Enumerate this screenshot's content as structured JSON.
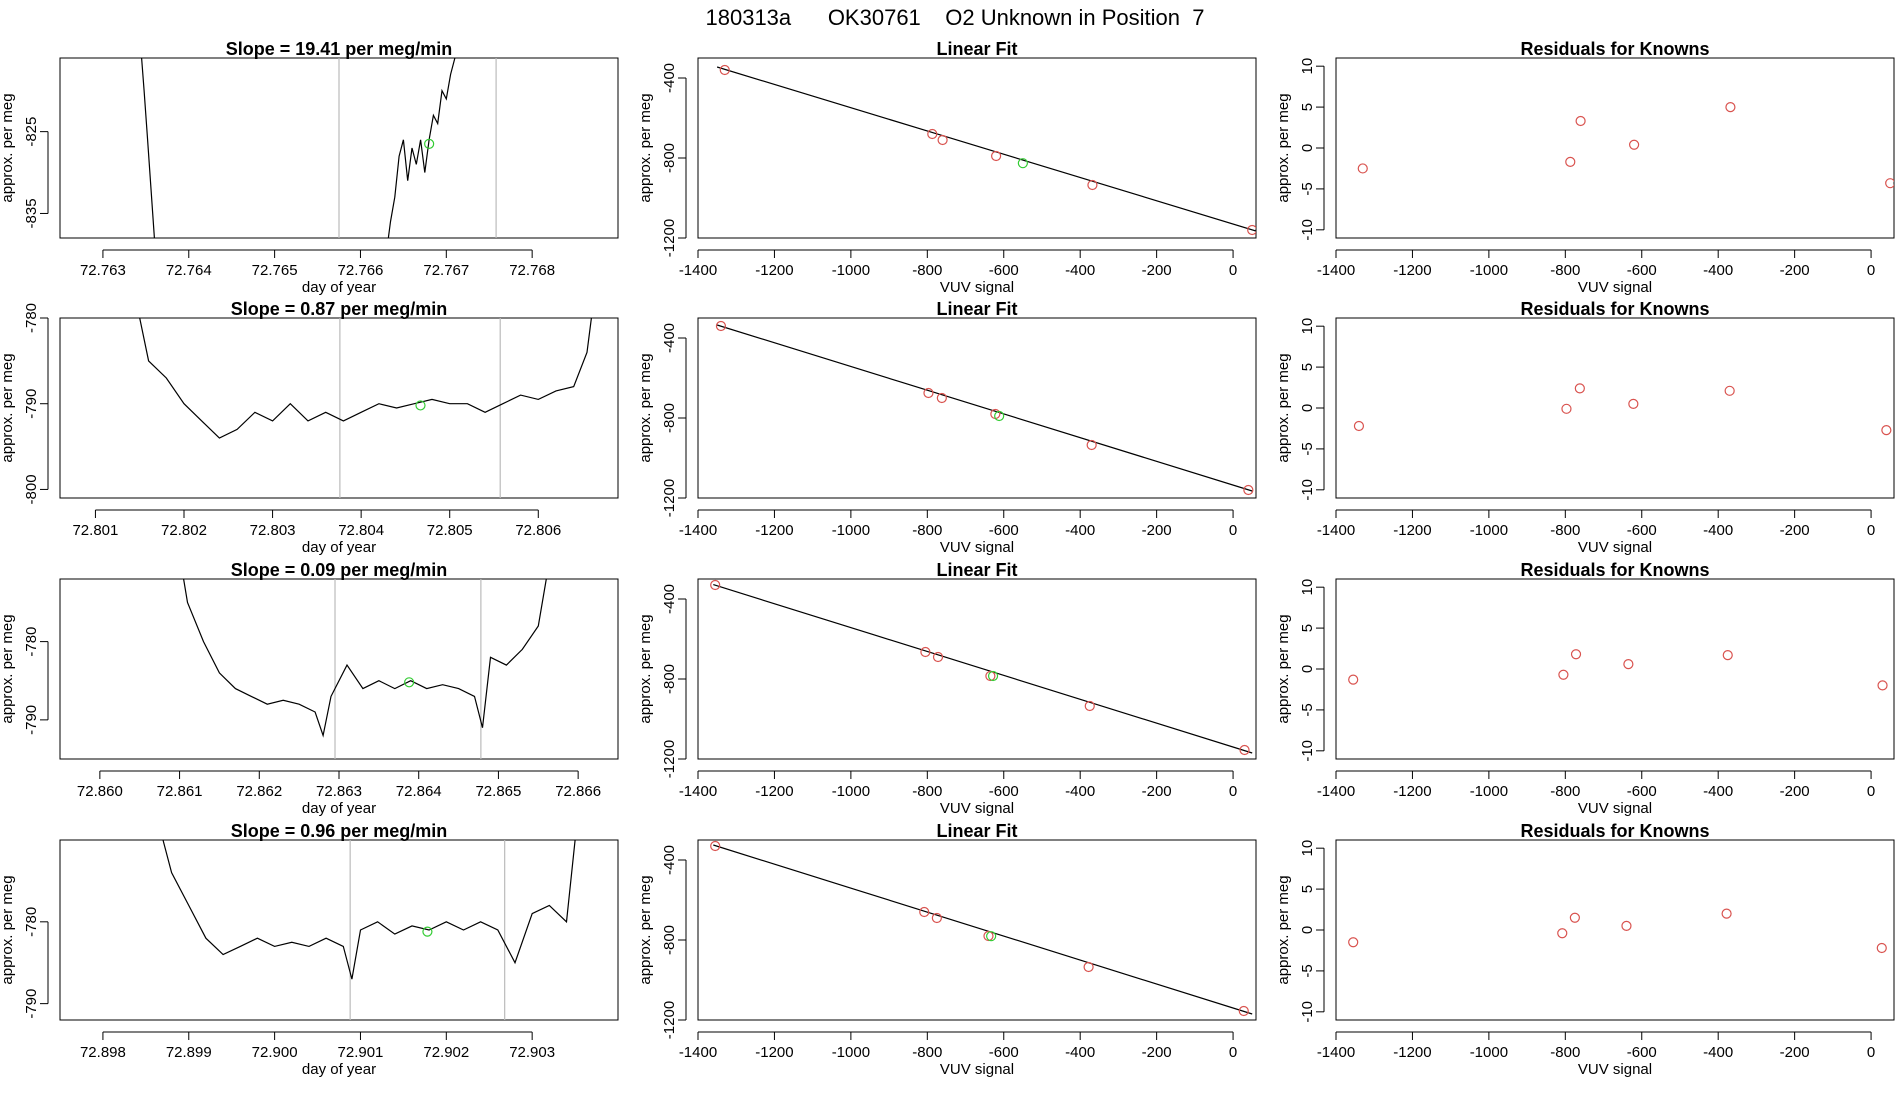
{
  "page_title": "180313a      OK30761    O2 Unknown in Position  7",
  "colors": {
    "trace": "#000000",
    "known_point": "#d9534f",
    "unknown_point": "#33cc33",
    "marker_line": "#bbbbbb",
    "fit_line": "#000000"
  },
  "chart_data": [
    {
      "panel": "trace",
      "row": 1,
      "type": "line",
      "title": "Slope =  19.41  per meg/min",
      "xlabel": "day of year",
      "ylabel": "approx. per meg",
      "xlim": [
        72.7625,
        72.769
      ],
      "ylim": [
        -838,
        -816
      ],
      "xticks": [
        "72.763",
        "72.764",
        "72.765",
        "72.766",
        "72.767",
        "72.768"
      ],
      "yticks": [
        "-825",
        "-835"
      ],
      "markers": [
        72.76575,
        72.76758
      ],
      "unknown_point": [
        72.7668,
        -826.5
      ],
      "series": [
        {
          "x": [
            72.76345,
            72.76348,
            72.76352,
            72.76356,
            72.7636,
            72.7637
          ],
          "y": [
            -816,
            -820,
            -826,
            -832,
            -838,
            -842
          ]
        },
        {
          "x": [
            72.7663,
            72.76635,
            72.7664,
            72.76645,
            72.7665,
            72.76655,
            72.7666,
            72.76665,
            72.7667,
            72.76675,
            72.7668,
            72.76685,
            72.7669,
            72.76695,
            72.767,
            72.76705,
            72.7671,
            72.76715
          ],
          "y": [
            -840,
            -836,
            -833,
            -828,
            -826,
            -831,
            -827,
            -829,
            -826,
            -830,
            -826,
            -823,
            -824,
            -820,
            -821,
            -818,
            -816,
            -814
          ]
        }
      ]
    },
    {
      "panel": "fit",
      "row": 1,
      "type": "scatter",
      "title": "Linear Fit",
      "xlabel": "VUV signal",
      "ylabel": "approx. per meg",
      "xlim": [
        -1400,
        60
      ],
      "ylim": [
        -1200,
        -300
      ],
      "xticks": [
        -1400,
        -1200,
        -1000,
        -800,
        -600,
        -400,
        -200,
        0
      ],
      "yticks": [
        -400,
        -800,
        -1200
      ],
      "line": {
        "x": [
          -1350,
          60
        ],
        "y": [
          -345,
          -1165
        ]
      },
      "knowns": {
        "x": [
          -1330,
          -787,
          -760,
          -620,
          -368,
          50
        ],
        "y": [
          -360,
          -680,
          -710,
          -790,
          -935,
          -1160
        ]
      },
      "unknown": {
        "x": [
          -550
        ],
        "y": [
          -826
        ]
      }
    },
    {
      "panel": "residuals",
      "row": 1,
      "type": "scatter",
      "title": "Residuals for Knowns",
      "xlabel": "VUV signal",
      "ylabel": "approx. per meg",
      "xlim": [
        -1400,
        60
      ],
      "ylim": [
        -11,
        11
      ],
      "xticks": [
        -1400,
        -1200,
        -1000,
        -800,
        -600,
        -400,
        -200,
        0
      ],
      "yticks": [
        10,
        5,
        0,
        -5,
        -10
      ],
      "points": {
        "x": [
          -1330,
          -787,
          -760,
          -620,
          -368,
          50
        ],
        "y": [
          -2.5,
          -1.7,
          3.3,
          0.4,
          5.0,
          -4.3
        ]
      }
    },
    {
      "panel": "trace",
      "row": 2,
      "type": "line",
      "title": "Slope =  0.87  per meg/min",
      "xlabel": "day of year",
      "ylabel": "approx. per meg",
      "xlim": [
        72.8006,
        72.8069
      ],
      "ylim": [
        -801,
        -780
      ],
      "xticks": [
        "72.801",
        "72.802",
        "72.803",
        "72.804",
        "72.805",
        "72.806"
      ],
      "yticks": [
        "-780",
        "-790",
        "-800"
      ],
      "markers": [
        72.80376,
        72.80557
      ],
      "unknown_point": [
        72.80467,
        -790.2
      ],
      "series": [
        {
          "x": [
            72.8015,
            72.8016,
            72.8018,
            72.802,
            72.8022,
            72.8024,
            72.8026,
            72.8028,
            72.803,
            72.8032,
            72.8034,
            72.8036,
            72.8038,
            72.804,
            72.8042,
            72.8044,
            72.8046,
            72.8048,
            72.805,
            72.8052,
            72.8054,
            72.8056,
            72.8058,
            72.806,
            72.8062,
            72.8064,
            72.80655,
            72.8066
          ],
          "y": [
            -780,
            -785,
            -787,
            -790,
            -792,
            -794,
            -793,
            -791,
            -792,
            -790,
            -792,
            -791,
            -792,
            -791,
            -790,
            -790.5,
            -790,
            -789.5,
            -790,
            -790,
            -791,
            -790,
            -789,
            -789.5,
            -788.5,
            -788,
            -784,
            -780
          ]
        }
      ]
    },
    {
      "panel": "fit",
      "row": 2,
      "type": "scatter",
      "title": "Linear Fit",
      "xlabel": "VUV signal",
      "ylabel": "approx. per meg",
      "xlim": [
        -1400,
        60
      ],
      "ylim": [
        -1200,
        -300
      ],
      "xticks": [
        -1400,
        -1200,
        -1000,
        -800,
        -600,
        -400,
        -200,
        0
      ],
      "yticks": [
        -400,
        -800,
        -1200
      ],
      "line": {
        "x": [
          -1350,
          50
        ],
        "y": [
          -335,
          -1165
        ]
      },
      "knowns": {
        "x": [
          -1340,
          -797,
          -762,
          -622,
          -370,
          40
        ],
        "y": [
          -340,
          -675,
          -700,
          -780,
          -935,
          -1160
        ]
      },
      "unknown": {
        "x": [
          -612
        ],
        "y": [
          -790
        ]
      }
    },
    {
      "panel": "residuals",
      "row": 2,
      "type": "scatter",
      "title": "Residuals for Knowns",
      "xlabel": "VUV signal",
      "ylabel": "approx. per meg",
      "xlim": [
        -1400,
        60
      ],
      "ylim": [
        -11,
        11
      ],
      "xticks": [
        -1400,
        -1200,
        -1000,
        -800,
        -600,
        -400,
        -200,
        0
      ],
      "yticks": [
        10,
        5,
        0,
        -5,
        -10
      ],
      "points": {
        "x": [
          -1340,
          -797,
          -762,
          -622,
          -370,
          40
        ],
        "y": [
          -2.2,
          -0.1,
          2.4,
          0.5,
          2.1,
          -2.7
        ]
      }
    },
    {
      "panel": "trace",
      "row": 3,
      "type": "line",
      "title": "Slope =  0.09  per meg/min",
      "xlabel": "day of year",
      "ylabel": "approx. per meg",
      "xlim": [
        72.8595,
        72.8665
      ],
      "ylim": [
        -795,
        -772
      ],
      "xticks": [
        "72.860",
        "72.861",
        "72.862",
        "72.863",
        "72.864",
        "72.865",
        "72.866"
      ],
      "yticks": [
        "-780",
        "-790"
      ],
      "markers": [
        72.86295,
        72.86478
      ],
      "unknown_point": [
        72.86388,
        -785.2
      ],
      "series": [
        {
          "x": [
            72.86105,
            72.8611,
            72.8613,
            72.8615,
            72.8617,
            72.8619,
            72.8621,
            72.8623,
            72.8625,
            72.8627,
            72.8628,
            72.8629,
            72.8631,
            72.8633,
            72.8635,
            72.8637,
            72.8639,
            72.8641,
            72.8643,
            72.8645,
            72.8647,
            72.8648,
            72.8649,
            72.8651,
            72.8653,
            72.8655,
            72.8656
          ],
          "y": [
            -772,
            -775,
            -780,
            -784,
            -786,
            -787,
            -788,
            -787.5,
            -788,
            -789,
            -792,
            -787,
            -783,
            -786,
            -785,
            -786,
            -785,
            -786,
            -785.5,
            -786,
            -787,
            -791,
            -782,
            -783,
            -781,
            -778,
            -772
          ]
        }
      ]
    },
    {
      "panel": "fit",
      "row": 3,
      "type": "scatter",
      "title": "Linear Fit",
      "xlabel": "VUV signal",
      "ylabel": "approx. per meg",
      "xlim": [
        -1400,
        60
      ],
      "ylim": [
        -1200,
        -300
      ],
      "xticks": [
        -1400,
        -1200,
        -1000,
        -800,
        -600,
        -400,
        -200,
        0
      ],
      "yticks": [
        -400,
        -800,
        -1200
      ],
      "line": {
        "x": [
          -1360,
          50
        ],
        "y": [
          -328,
          -1170
        ]
      },
      "knowns": {
        "x": [
          -1355,
          -805,
          -772,
          -635,
          -375,
          30
        ],
        "y": [
          -330,
          -665,
          -690,
          -785,
          -935,
          -1155
        ]
      },
      "unknown": {
        "x": [
          -628
        ],
        "y": [
          -785
        ]
      }
    },
    {
      "panel": "residuals",
      "row": 3,
      "type": "scatter",
      "title": "Residuals for Knowns",
      "xlabel": "VUV signal",
      "ylabel": "approx. per meg",
      "xlim": [
        -1400,
        60
      ],
      "ylim": [
        -11,
        11
      ],
      "xticks": [
        -1400,
        -1200,
        -1000,
        -800,
        -600,
        -400,
        -200,
        0
      ],
      "yticks": [
        10,
        5,
        0,
        -5,
        -10
      ],
      "points": {
        "x": [
          -1355,
          -805,
          -772,
          -635,
          -375,
          30
        ],
        "y": [
          -1.3,
          -0.7,
          1.8,
          0.6,
          1.7,
          -2.0
        ]
      }
    },
    {
      "panel": "trace",
      "row": 4,
      "type": "line",
      "title": "Slope =  0.96  per meg/min",
      "xlabel": "day of year",
      "ylabel": "approx. per meg",
      "xlim": [
        72.8975,
        72.904
      ],
      "ylim": [
        -792,
        -770
      ],
      "xticks": [
        "72.898",
        "72.899",
        "72.900",
        "72.901",
        "72.902",
        "72.903"
      ],
      "yticks": [
        "-780",
        "-790"
      ],
      "markers": [
        72.90088,
        72.90268
      ],
      "unknown_point": [
        72.90178,
        -781.2
      ],
      "series": [
        {
          "x": [
            72.8987,
            72.8988,
            72.899,
            72.8992,
            72.8994,
            72.8996,
            72.8998,
            72.9,
            72.9002,
            72.9004,
            72.9006,
            72.9008,
            72.9009,
            72.901,
            72.9012,
            72.9014,
            72.9016,
            72.9018,
            72.902,
            72.9022,
            72.9024,
            72.9026,
            72.9028,
            72.903,
            72.9032,
            72.9034,
            72.9035
          ],
          "y": [
            -770,
            -774,
            -778,
            -782,
            -784,
            -783,
            -782,
            -783,
            -782.5,
            -783,
            -782,
            -783,
            -787,
            -781,
            -780,
            -781.5,
            -780.5,
            -781,
            -780,
            -781,
            -780,
            -781,
            -785,
            -779,
            -778,
            -780,
            -770
          ]
        }
      ]
    },
    {
      "panel": "fit",
      "row": 4,
      "type": "scatter",
      "title": "Linear Fit",
      "xlabel": "VUV signal",
      "ylabel": "approx. per meg",
      "xlim": [
        -1400,
        60
      ],
      "ylim": [
        -1200,
        -300
      ],
      "xticks": [
        -1400,
        -1200,
        -1000,
        -800,
        -600,
        -400,
        -200,
        0
      ],
      "yticks": [
        -400,
        -800,
        -1200
      ],
      "line": {
        "x": [
          -1360,
          50
        ],
        "y": [
          -325,
          -1170
        ]
      },
      "knowns": {
        "x": [
          -1355,
          -808,
          -775,
          -640,
          -378,
          28
        ],
        "y": [
          -330,
          -660,
          -690,
          -780,
          -935,
          -1155
        ]
      },
      "unknown": {
        "x": [
          -633
        ],
        "y": [
          -781
        ]
      }
    },
    {
      "panel": "residuals",
      "row": 4,
      "type": "scatter",
      "title": "Residuals for Knowns",
      "xlabel": "VUV signal",
      "ylabel": "approx. per meg",
      "xlim": [
        -1400,
        60
      ],
      "ylim": [
        -11,
        11
      ],
      "xticks": [
        -1400,
        -1200,
        -1000,
        -800,
        -600,
        -400,
        -200,
        0
      ],
      "yticks": [
        10,
        5,
        0,
        -5,
        -10
      ],
      "points": {
        "x": [
          -1355,
          -808,
          -775,
          -640,
          -378,
          28
        ],
        "y": [
          -1.5,
          -0.4,
          1.5,
          0.5,
          2.0,
          -2.2
        ]
      }
    }
  ]
}
